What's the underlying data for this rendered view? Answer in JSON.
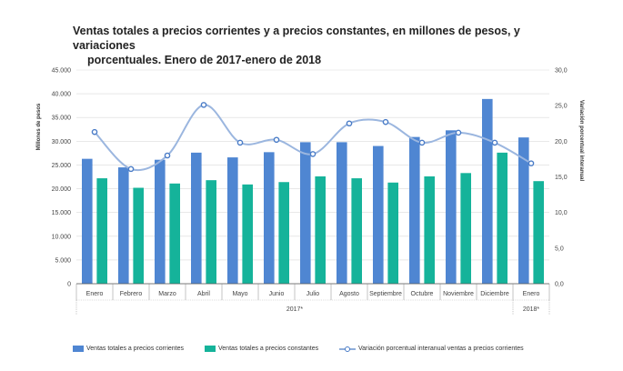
{
  "title": {
    "line1": "Ventas totales a precios corrientes y a precios constantes, en millones de pesos, y variaciones",
    "line2": "porcentuales. Enero de 2017-enero de 2018"
  },
  "colors": {
    "corrientes": "#4f86d2",
    "constantes": "#15b39a",
    "variacion_line": "#9bb6df",
    "variacion_marker": "#4a7cc7",
    "grid": "#d9d9d9",
    "axis_text": "#444444"
  },
  "chart_data": {
    "type": "bar",
    "categories": [
      "Enero",
      "Febrero",
      "Marzo",
      "Abril",
      "Mayo",
      "Junio",
      "Julio",
      "Agosto",
      "Septiembre",
      "Octubre",
      "Noviembre",
      "Diciembre",
      "Enero"
    ],
    "year_groups": [
      {
        "label": "2017*",
        "count": 12
      },
      {
        "label": "2018*",
        "count": 1
      }
    ],
    "series": [
      {
        "name": "Ventas totales a precios corrientes",
        "axis": "left",
        "kind": "bar",
        "values": [
          26300,
          24500,
          26100,
          27600,
          26600,
          27700,
          29800,
          29800,
          29000,
          30900,
          32300,
          38900,
          30800
        ]
      },
      {
        "name": "Ventas totales a precios constantes",
        "axis": "left",
        "kind": "bar",
        "values": [
          22200,
          20200,
          21100,
          21800,
          20900,
          21400,
          22600,
          22200,
          21300,
          22600,
          23300,
          27600,
          21600
        ]
      },
      {
        "name": "Variación porcentual interanual ventas a precios corrientes",
        "axis": "right",
        "kind": "line",
        "values": [
          21.3,
          16.1,
          18.0,
          25.1,
          19.8,
          20.2,
          18.2,
          22.5,
          22.7,
          19.8,
          21.2,
          19.8,
          16.9
        ]
      }
    ],
    "ylabel": "Millones de pesos",
    "y2label": "Variación porcentual interanual",
    "ylim": [
      0,
      45000
    ],
    "y2lim": [
      0,
      30
    ],
    "yticks": [
      "45.000",
      "40.000",
      "35.000",
      "30.000",
      "25.000",
      "20.000",
      "15.000",
      "10.000",
      "5.000",
      "0"
    ],
    "y2ticks": [
      "30,0",
      "25,0",
      "20,0",
      "15,0",
      "10,0",
      "5,0",
      "0,0"
    ],
    "grid": true,
    "legend_position": "bottom"
  }
}
